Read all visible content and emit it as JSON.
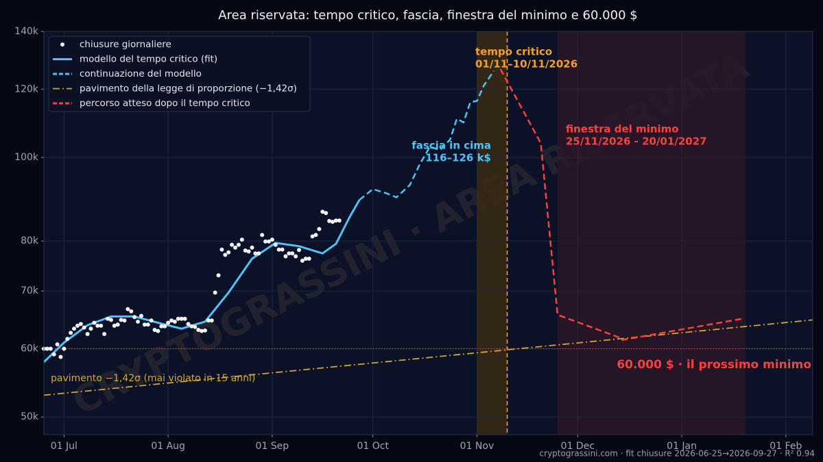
{
  "chart_data": {
    "type": "line",
    "title": "Area riservata: tempo critico, fascia, finestra del minimo e 60.000 $",
    "log_y": true,
    "grid": true,
    "legend": "upper left",
    "xlim": [
      "2026-06-25",
      "2027-02-09"
    ],
    "ylim": [
      47700,
      140000
    ],
    "xticks": [
      {
        "value": "2026-07-01",
        "label": "01 Jul"
      },
      {
        "value": "2026-08-01",
        "label": "01 Aug"
      },
      {
        "value": "2026-09-01",
        "label": "01 Sep"
      },
      {
        "value": "2026-10-01",
        "label": "01 Oct"
      },
      {
        "value": "2026-11-01",
        "label": "01 Nov"
      },
      {
        "value": "2026-12-01",
        "label": "01 Dec"
      },
      {
        "value": "2027-01-01",
        "label": "01 Jan"
      },
      {
        "value": "2027-02-01",
        "label": "01 Feb"
      }
    ],
    "yticks": [
      {
        "value": 50000,
        "label": "50k"
      },
      {
        "value": 60000,
        "label": "60k"
      },
      {
        "value": 70000,
        "label": "70k"
      },
      {
        "value": 80000,
        "label": "80k"
      },
      {
        "value": 100000,
        "label": "100k"
      },
      {
        "value": 120000,
        "label": "120k"
      },
      {
        "value": 140000,
        "label": "140k"
      }
    ],
    "series": [
      {
        "name": "chiusure giornaliere",
        "kind": "scatter",
        "color": "#f2f2f2",
        "x": [
          "2026-06-25",
          "2026-06-26",
          "2026-06-27",
          "2026-06-28",
          "2026-06-29",
          "2026-06-30",
          "2026-07-01",
          "2026-07-02",
          "2026-07-03",
          "2026-07-04",
          "2026-07-05",
          "2026-07-06",
          "2026-07-07",
          "2026-07-08",
          "2026-07-09",
          "2026-07-10",
          "2026-07-11",
          "2026-07-12",
          "2026-07-13",
          "2026-07-14",
          "2026-07-15",
          "2026-07-16",
          "2026-07-17",
          "2026-07-18",
          "2026-07-19",
          "2026-07-20",
          "2026-07-21",
          "2026-07-22",
          "2026-07-23",
          "2026-07-24",
          "2026-07-25",
          "2026-07-26",
          "2026-07-27",
          "2026-07-28",
          "2026-07-29",
          "2026-07-30",
          "2026-07-31",
          "2026-08-01",
          "2026-08-02",
          "2026-08-03",
          "2026-08-04",
          "2026-08-05",
          "2026-08-06",
          "2026-08-07",
          "2026-08-08",
          "2026-08-09",
          "2026-08-10",
          "2026-08-11",
          "2026-08-12",
          "2026-08-13",
          "2026-08-14",
          "2026-08-15",
          "2026-08-16",
          "2026-08-17",
          "2026-08-18",
          "2026-08-19",
          "2026-08-20",
          "2026-08-21",
          "2026-08-22",
          "2026-08-23",
          "2026-08-24",
          "2026-08-25",
          "2026-08-26",
          "2026-08-27",
          "2026-08-28",
          "2026-08-29",
          "2026-08-30",
          "2026-08-31",
          "2026-09-01",
          "2026-09-02",
          "2026-09-03",
          "2026-09-04",
          "2026-09-05",
          "2026-09-06",
          "2026-09-07",
          "2026-09-08",
          "2026-09-09",
          "2026-09-10",
          "2026-09-11",
          "2026-09-12",
          "2026-09-13",
          "2026-09-14",
          "2026-09-15",
          "2026-09-16",
          "2026-09-17",
          "2026-09-18",
          "2026-09-19",
          "2026-09-20",
          "2026-09-21"
        ],
        "values": [
          60000,
          60000,
          60000,
          59100,
          60700,
          58700,
          60000,
          61600,
          62600,
          63300,
          63800,
          64100,
          63500,
          62400,
          63300,
          64300,
          63800,
          63800,
          62400,
          65000,
          64800,
          63800,
          64000,
          64800,
          64700,
          66700,
          66300,
          65300,
          64500,
          65500,
          64000,
          64000,
          64700,
          63100,
          62900,
          63700,
          63700,
          64300,
          64700,
          64500,
          65000,
          65000,
          65000,
          64100,
          63700,
          63600,
          63100,
          62900,
          63000,
          64700,
          64700,
          69700,
          73000,
          78200,
          77100,
          77600,
          79200,
          78600,
          79200,
          80300,
          78000,
          77800,
          78600,
          77400,
          77400,
          81300,
          79900,
          79900,
          80300,
          79200,
          78200,
          78200,
          76800,
          77400,
          77400,
          76800,
          78100,
          75900,
          76300,
          76300,
          81000,
          81300,
          82600,
          86500,
          86200,
          84400,
          84200,
          84500,
          84500
        ]
      },
      {
        "name": "modello del tempo critico (fit)",
        "kind": "line",
        "dash": "solid",
        "color": "#4fc3f7",
        "x": [
          "2026-06-25",
          "2026-07-01",
          "2026-07-08",
          "2026-07-15",
          "2026-07-22",
          "2026-07-29",
          "2026-08-05",
          "2026-08-12",
          "2026-08-19",
          "2026-08-26",
          "2026-09-02",
          "2026-09-09",
          "2026-09-16",
          "2026-09-20",
          "2026-09-24",
          "2026-09-27"
        ],
        "values": [
          57900,
          61000,
          63900,
          65400,
          65400,
          64300,
          63300,
          64500,
          69700,
          76300,
          79600,
          78900,
          77400,
          79400,
          85200,
          89300
        ]
      },
      {
        "name": "continuazione del modello",
        "kind": "line",
        "dash": "dashed",
        "color": "#4fc3f7",
        "x": [
          "2026-09-27",
          "2026-10-01",
          "2026-10-05",
          "2026-10-08",
          "2026-10-12",
          "2026-10-15",
          "2026-10-18",
          "2026-10-21",
          "2026-10-24",
          "2026-10-26",
          "2026-10-28",
          "2026-10-30",
          "2026-11-01",
          "2026-11-03",
          "2026-11-06"
        ],
        "values": [
          89300,
          91900,
          90900,
          89900,
          92900,
          98300,
          102900,
          102000,
          104900,
          110900,
          109800,
          115900,
          116300,
          121100,
          126000
        ]
      },
      {
        "name": "pavimento della legge di proporzione (−1,42σ)",
        "kind": "line",
        "dash": "dashdot",
        "color": "#d4a72c",
        "x": [
          "2026-06-25",
          "2027-02-09"
        ],
        "values": [
          53000,
          64800
        ]
      },
      {
        "name": "percorso atteso dopo il tempo critico",
        "kind": "line",
        "dash": "dashed",
        "color": "#ff4040",
        "x": [
          "2026-11-08",
          "2026-11-20",
          "2026-11-25",
          "2026-12-13",
          "2026-12-14",
          "2027-01-19"
        ],
        "values": [
          126600,
          103900,
          65700,
          61900,
          61400,
          65000
        ]
      }
    ],
    "bands": [
      {
        "from": "2026-11-01",
        "to": "2026-11-10",
        "color": "#3a2a14"
      },
      {
        "from": "2026-11-25",
        "to": "2027-01-20",
        "color": "#2a1626"
      }
    ],
    "vline": {
      "x": "2026-11-10",
      "color": "#f0a030"
    },
    "hline": {
      "y": 60000,
      "color": "#e0404a"
    },
    "annotations": [
      {
        "lines": [
          "tempo critico",
          "01/11–10/11/2026"
        ],
        "color": "#f0a030"
      },
      {
        "lines": [
          "fascia in cima",
          "116–126 k$"
        ],
        "color": "#4fc3f7"
      },
      {
        "lines": [
          "finestra del minimo",
          "25/11/2026 - 20/01/2027"
        ],
        "color": "#ff4040"
      },
      {
        "lines": [
          "60.000 $ · il prossimo minimo"
        ],
        "color": "#ff4040"
      },
      {
        "lines": [
          "pavimento −1,42σ (mai violato in 15 anni)"
        ],
        "color": "#d4a72c"
      }
    ],
    "watermark": "CRYPTOGRASSINI · AREA RISERVATA",
    "footer": "cryptograssini.com · fit chiusure 2026-06-25→2026-09-27 · R² 0.94"
  }
}
